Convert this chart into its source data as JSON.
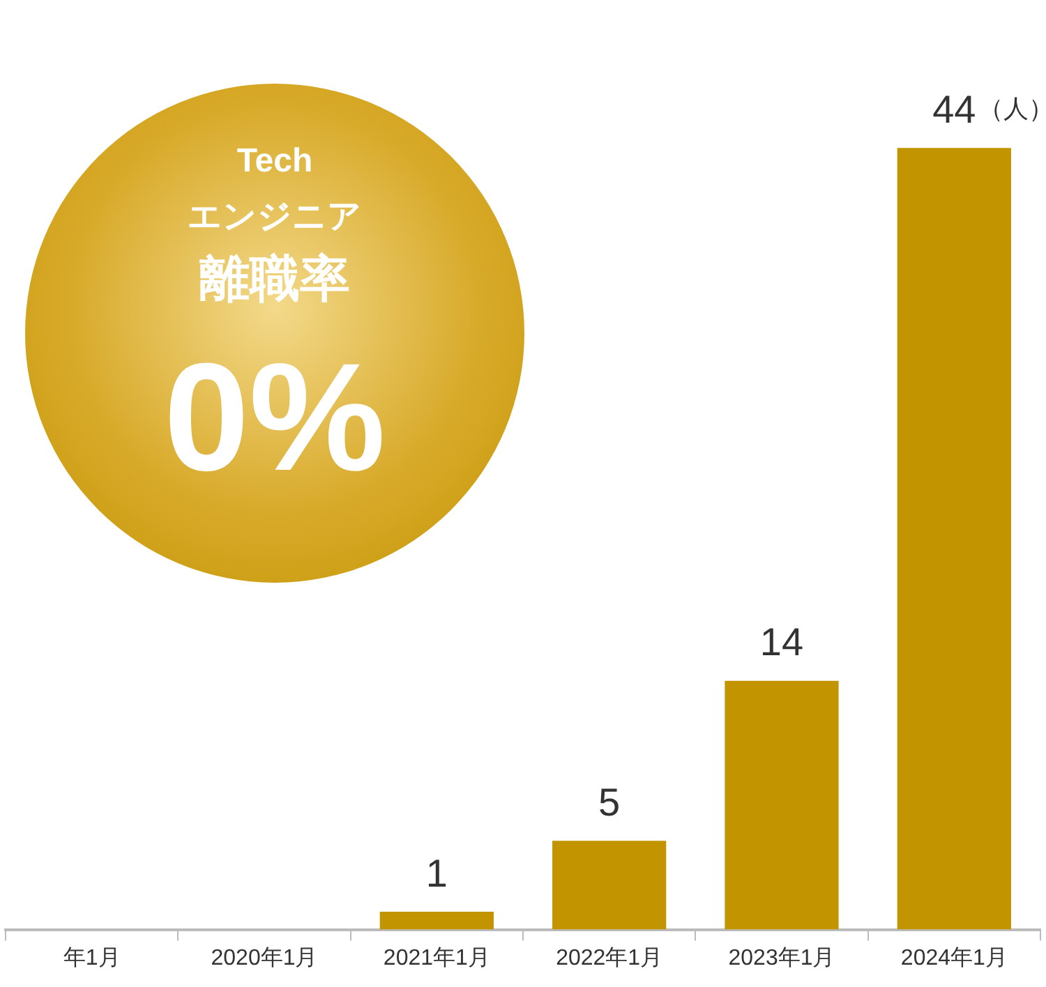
{
  "chart_data": {
    "type": "bar",
    "categories": [
      "年1月",
      "2020年1月",
      "2021年1月",
      "2022年1月",
      "2023年1月",
      "2024年1月"
    ],
    "values": [
      null,
      null,
      1,
      5,
      14,
      44
    ],
    "value_labels": [
      null,
      null,
      "1",
      "5",
      "14",
      "44"
    ],
    "color": "#c19400",
    "annotations": [
      "（人）",
      "Tech",
      "エンジニア",
      "離職率",
      "0%"
    ],
    "grid": false,
    "legend": false
  }
}
